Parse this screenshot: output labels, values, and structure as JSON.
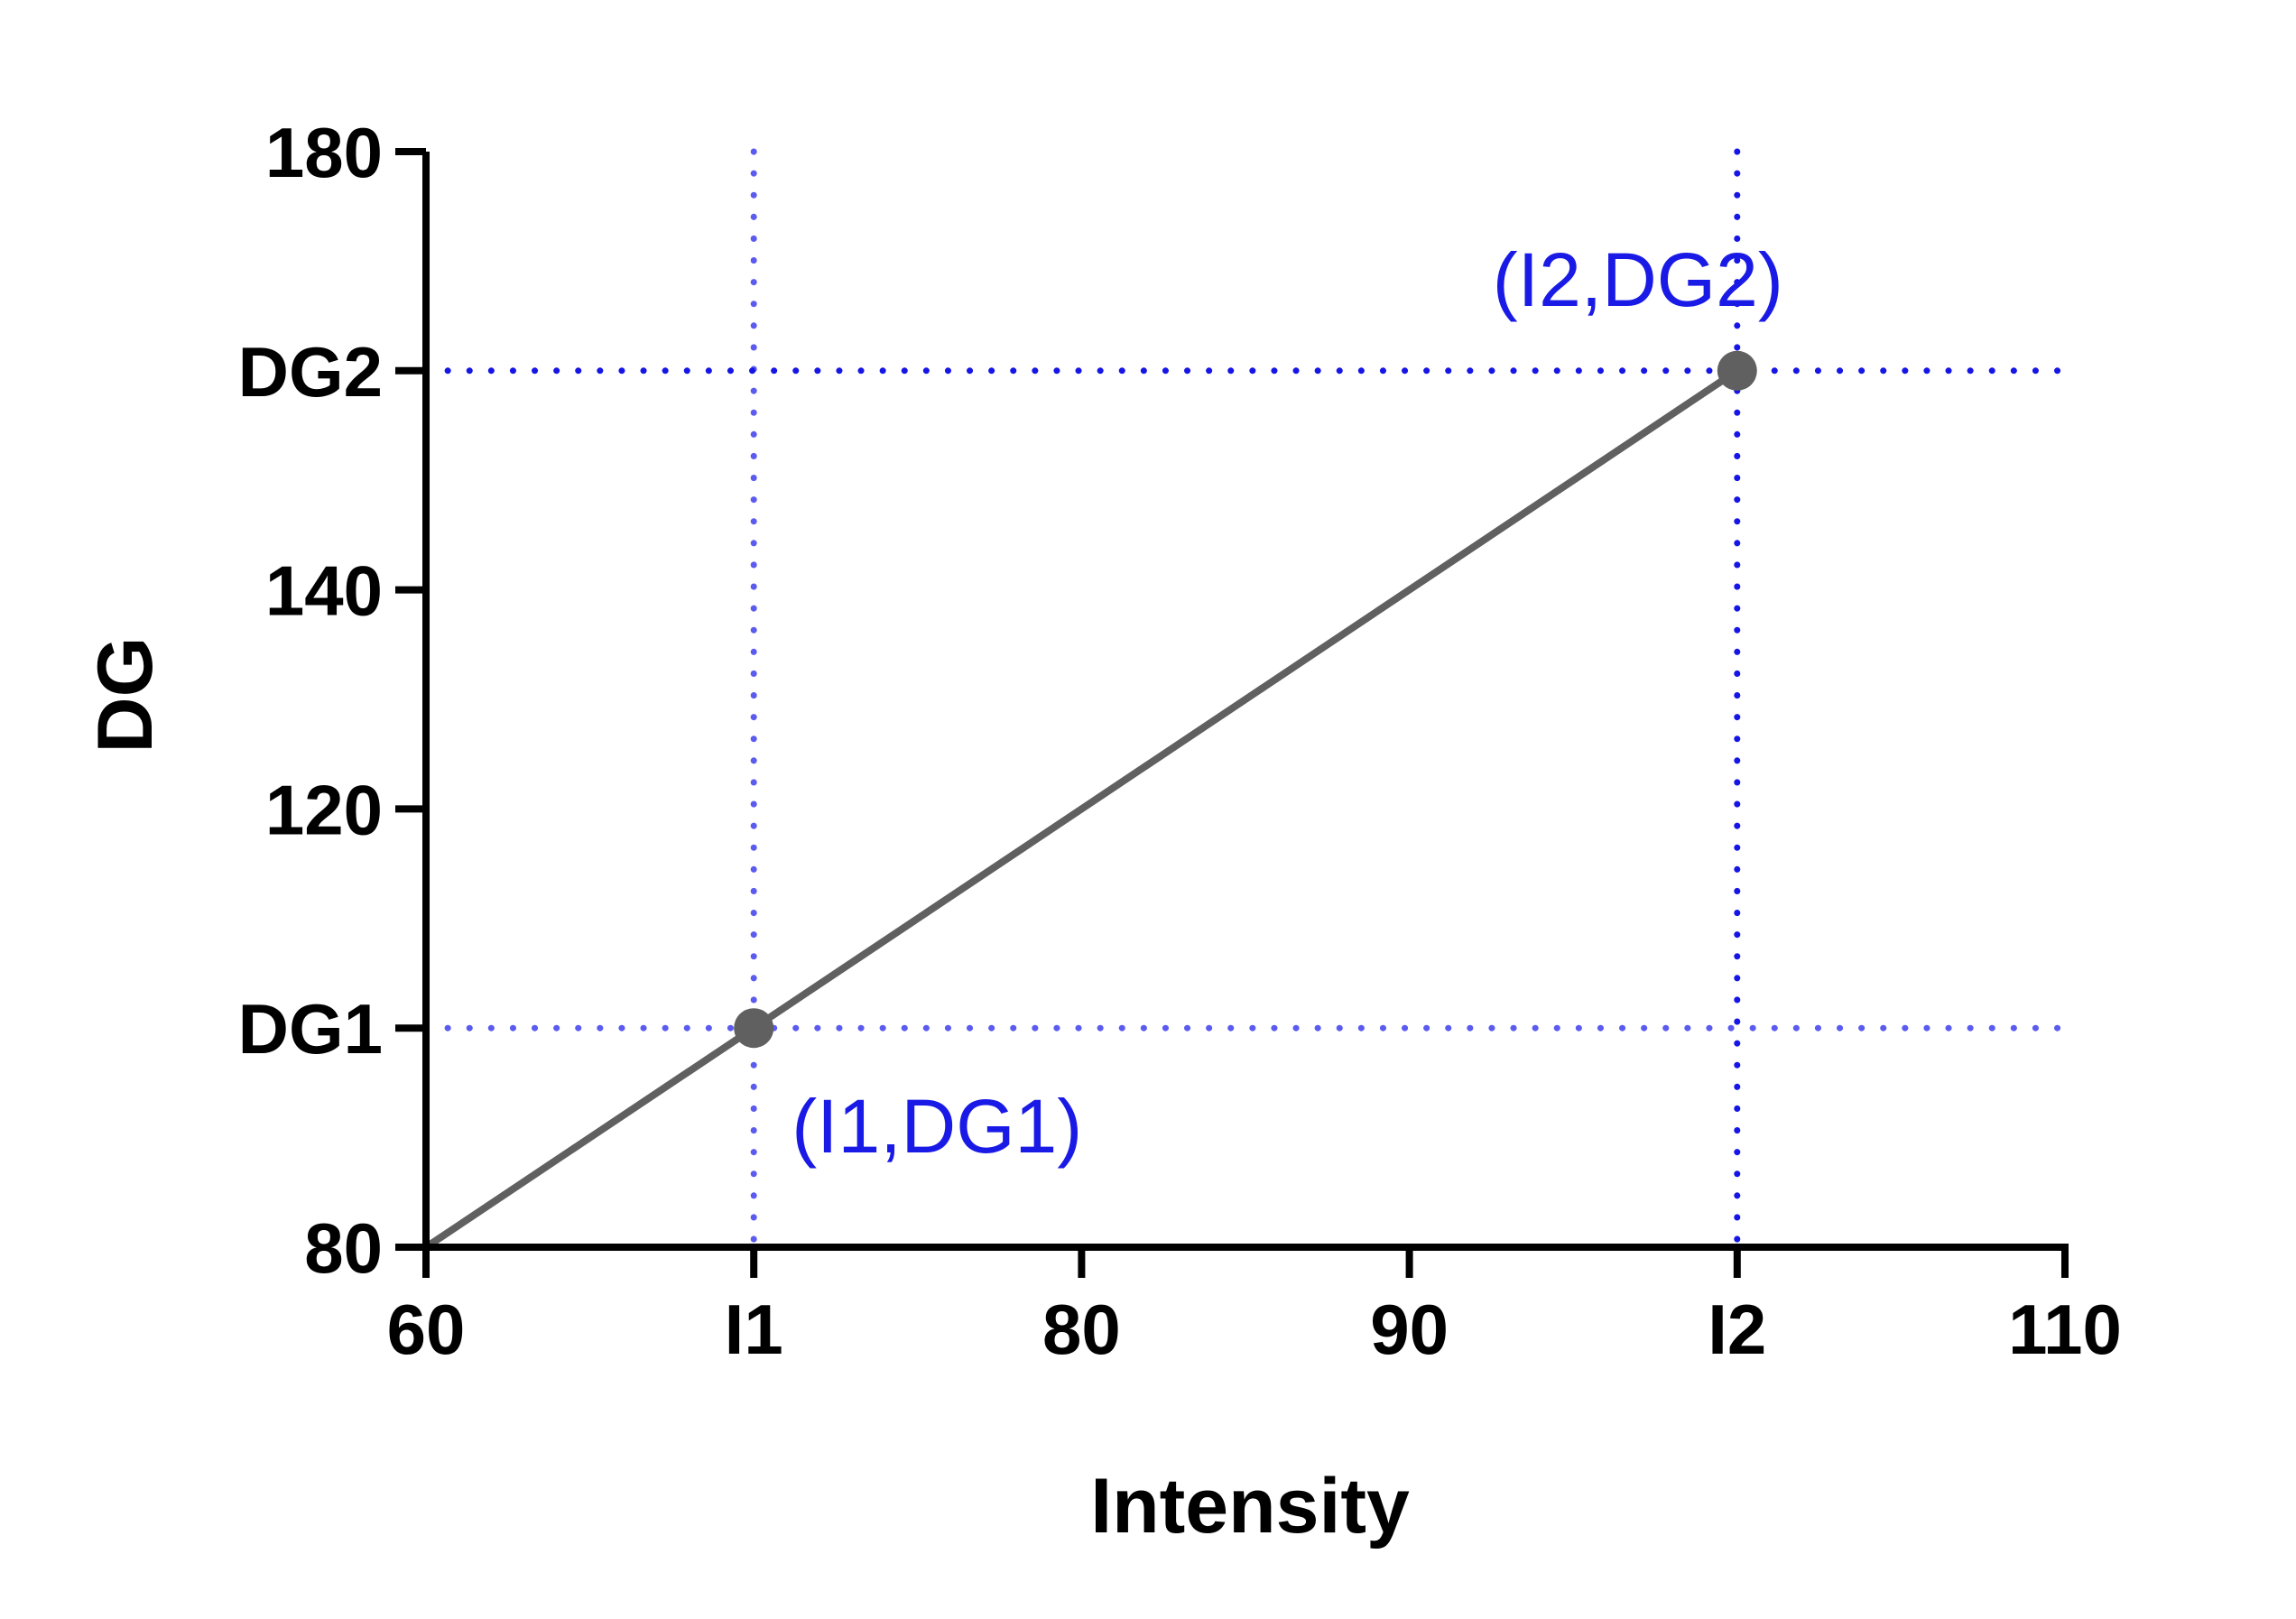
{
  "chart_data": {
    "type": "line",
    "title": "",
    "xlabel": "Intensity",
    "ylabel": "DG",
    "xlim": [
      60,
      110
    ],
    "ylim": [
      80,
      180
    ],
    "x_ticks": [
      {
        "value": 60,
        "label": "60"
      },
      {
        "value": 70,
        "label": "I1"
      },
      {
        "value": 80,
        "label": "80"
      },
      {
        "value": 90,
        "label": "90"
      },
      {
        "value": 100,
        "label": "I2"
      },
      {
        "value": 110,
        "label": "110"
      }
    ],
    "y_ticks": [
      {
        "value": 80,
        "label": "80"
      },
      {
        "value": 100,
        "label": "DG1"
      },
      {
        "value": 120,
        "label": "120"
      },
      {
        "value": 140,
        "label": "140"
      },
      {
        "value": 160,
        "label": "DG2"
      },
      {
        "value": 180,
        "label": "180"
      }
    ],
    "series": [
      {
        "x": [
          60,
          100
        ],
        "y": [
          80,
          160
        ],
        "color": "#606060"
      }
    ],
    "points": [
      {
        "x": 70,
        "y": 100,
        "label": "(I1,DG1)"
      },
      {
        "x": 100,
        "y": 160,
        "label": "(I2,DG2)"
      }
    ],
    "reference_lines": [
      {
        "axis": "x",
        "value": 70,
        "style": "dotted",
        "color": "#5b5bf0"
      },
      {
        "axis": "x",
        "value": 100,
        "style": "dotted",
        "color": "#1515e6"
      },
      {
        "axis": "y",
        "value": 100,
        "style": "dotted",
        "color": "#5b5bf0"
      },
      {
        "axis": "y",
        "value": 160,
        "style": "dotted",
        "color": "#1515e6"
      }
    ],
    "grid": false,
    "legend": "none",
    "colors": {
      "axis": "#000000",
      "line": "#606060",
      "marker": "#606060",
      "annotation": "#1a1ae6"
    }
  }
}
